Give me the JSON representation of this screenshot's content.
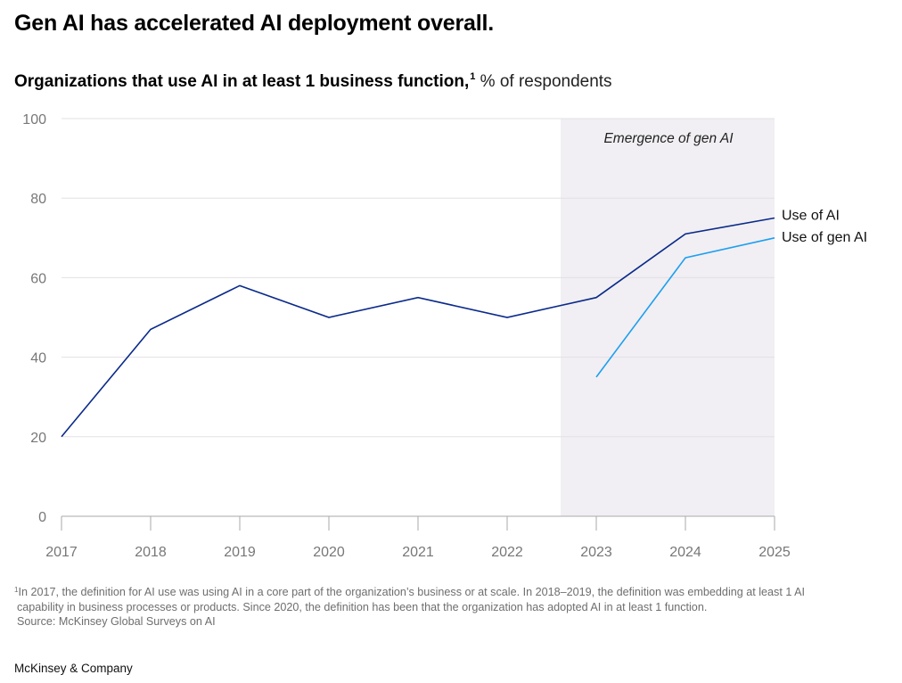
{
  "header": {
    "title": "Gen AI has accelerated AI deployment overall.",
    "subtitle_bold": "Organizations that use AI in at least 1 business function,",
    "subtitle_footnote_mark": "1",
    "subtitle_unit": " % of respondents"
  },
  "chart_data": {
    "type": "line",
    "title": "Organizations that use AI in at least 1 business function, % of respondents",
    "xlabel": "",
    "ylabel": "% of respondents",
    "x": [
      "2017",
      "2018",
      "2019",
      "2020",
      "2021",
      "2022",
      "2023",
      "2024",
      "2025"
    ],
    "ylim": [
      0,
      100
    ],
    "yticks": [
      "0",
      "20",
      "40",
      "60",
      "80",
      "100"
    ],
    "grid": true,
    "series": [
      {
        "name": "Use of AI",
        "color": "#0a2a8a",
        "values": [
          20,
          47,
          58,
          50,
          55,
          50,
          55,
          71,
          75
        ]
      },
      {
        "name": "Use of gen AI",
        "color": "#1f9ff0",
        "values": [
          null,
          null,
          null,
          null,
          null,
          null,
          35,
          65,
          70
        ]
      }
    ],
    "annotations": [
      {
        "text": "Emergence of gen AI",
        "type": "shaded-region",
        "x_from": "2022.6",
        "x_to": "2025",
        "color": "#f1eff3"
      }
    ],
    "legend": "inline-right"
  },
  "footnote": {
    "mark": "1",
    "line1": "In 2017, the definition for AI use was using AI in a core part of the organization’s business or at scale. In 2018–2019, the definition was embedding at least 1 AI",
    "line2": "capability in business processes or products. Since 2020, the definition has been that the organization has adopted AI in at least 1 function.",
    "source": "Source: McKinsey Global Surveys on AI"
  },
  "brand": "McKinsey & Company"
}
